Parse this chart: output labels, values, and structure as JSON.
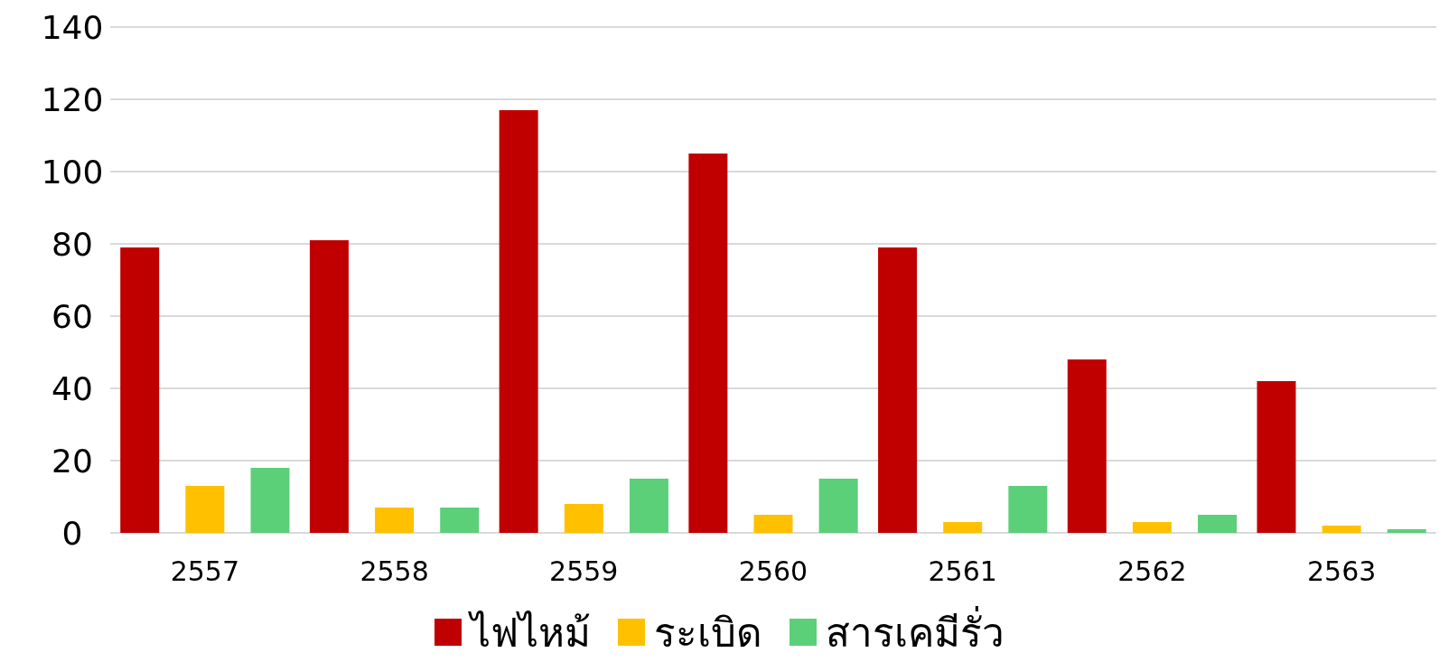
{
  "chart_data": {
    "type": "bar",
    "categories": [
      "2557",
      "2558",
      "2559",
      "2560",
      "2561",
      "2562",
      "2563"
    ],
    "series": [
      {
        "name": "ไฟไหม้",
        "color": "#c00000",
        "values": [
          79,
          81,
          117,
          105,
          79,
          48,
          42
        ]
      },
      {
        "name": "ระเบิด",
        "color": "#ffc000",
        "values": [
          13,
          7,
          8,
          5,
          3,
          3,
          2
        ]
      },
      {
        "name": "สารเคมีรั่ว",
        "color": "#5ccf79",
        "values": [
          18,
          7,
          15,
          15,
          13,
          5,
          1
        ]
      }
    ],
    "ylim": [
      0,
      140
    ],
    "yticks": [
      0,
      20,
      40,
      60,
      80,
      100,
      120,
      140
    ],
    "grid": "y",
    "legend": "bottom"
  }
}
